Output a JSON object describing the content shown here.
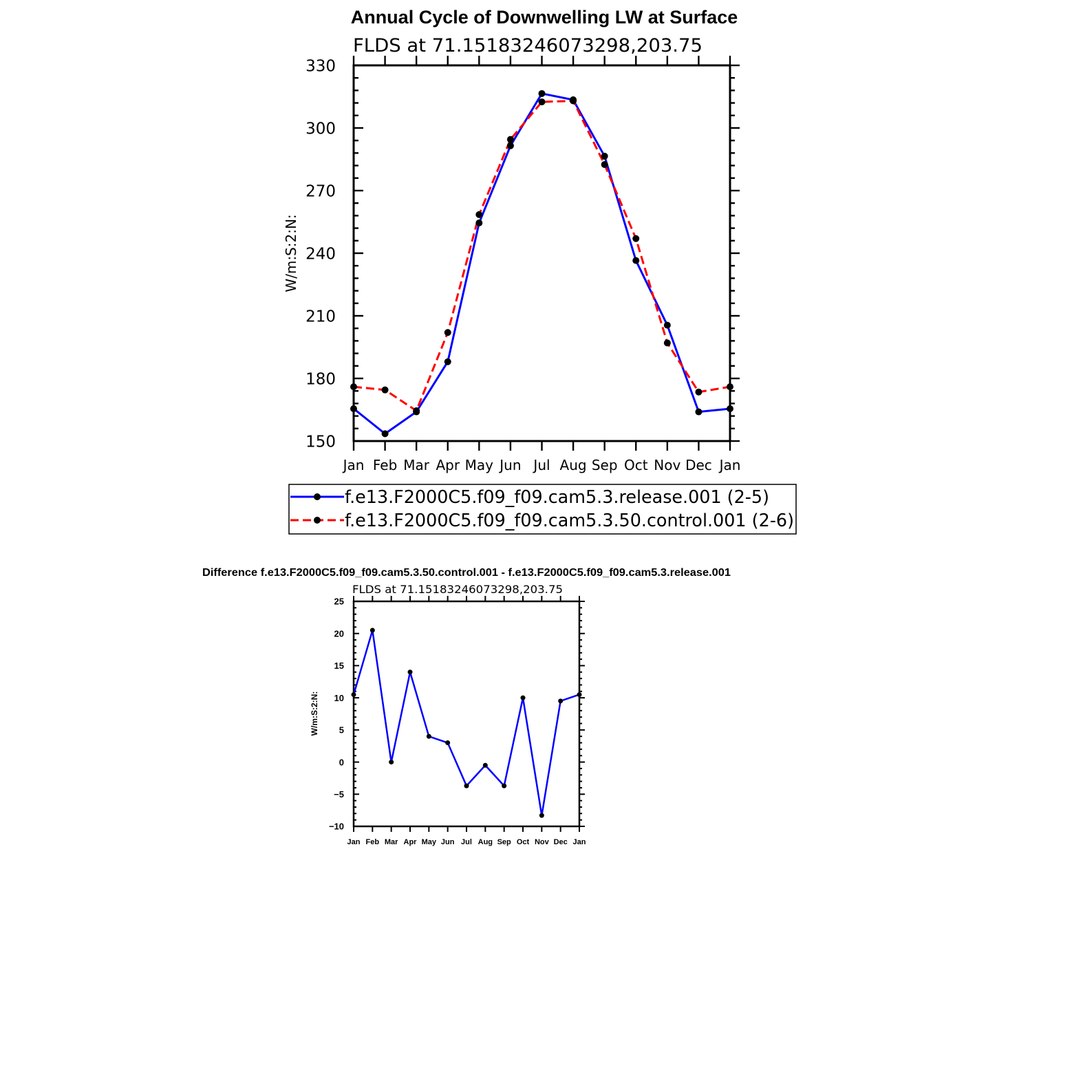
{
  "chart_data": [
    {
      "type": "line",
      "title": "Annual Cycle of Downwelling LW at Surface",
      "subtitle": "FLDS at 71.15183246073298,203.75",
      "xlabel": "",
      "ylabel": "W/m:S:2:N:",
      "categories": [
        "Jan",
        "Feb",
        "Mar",
        "Apr",
        "May",
        "Jun",
        "Jul",
        "Aug",
        "Sep",
        "Oct",
        "Nov",
        "Dec",
        "Jan"
      ],
      "ylim": [
        150,
        330
      ],
      "yticks": [
        150,
        180,
        210,
        240,
        270,
        300,
        330
      ],
      "legend_position": "bottom",
      "series": [
        {
          "name": "f.e13.F2000C5.f09_f09.cam5.3.release.001 (2-5)",
          "color": "#0000ff",
          "dash": "solid",
          "values": [
            165.5,
            153.5,
            164,
            188,
            254.5,
            291.5,
            316.5,
            313.5,
            286.5,
            236.5,
            205.5,
            164,
            165.5
          ]
        },
        {
          "name": "f.e13.F2000C5.f09_f09.cam5.3.50.control.001 (2-6)",
          "color": "#ff0000",
          "dash": "dashed",
          "values": [
            176,
            174.5,
            164.5,
            202,
            258.5,
            294.5,
            312.5,
            313,
            282.5,
            247,
            197,
            173.5,
            176
          ]
        }
      ]
    },
    {
      "type": "line",
      "title": "Difference f.e13.F2000C5.f09_f09.cam5.3.50.control.001 - f.e13.F2000C5.f09_f09.cam5.3.release.001",
      "subtitle": "FLDS at 71.15183246073298,203.75",
      "xlabel": "",
      "ylabel": "W/m:S:2:N:",
      "categories": [
        "Jan",
        "Feb",
        "Mar",
        "Apr",
        "May",
        "Jun",
        "Jul",
        "Aug",
        "Sep",
        "Oct",
        "Nov",
        "Dec",
        "Jan"
      ],
      "ylim": [
        -10,
        25
      ],
      "yticks": [
        -10,
        -5,
        0,
        5,
        10,
        15,
        20,
        25
      ],
      "ytick_labels": [
        "−10",
        "−5",
        "0",
        "5",
        "10",
        "15",
        "20",
        "25"
      ],
      "series": [
        {
          "color": "#0000ff",
          "dash": "solid",
          "values": [
            10.5,
            20.5,
            0,
            14,
            4,
            3,
            -3.7,
            -0.5,
            -3.7,
            10,
            -8.3,
            9.5,
            10.5
          ]
        }
      ]
    }
  ]
}
